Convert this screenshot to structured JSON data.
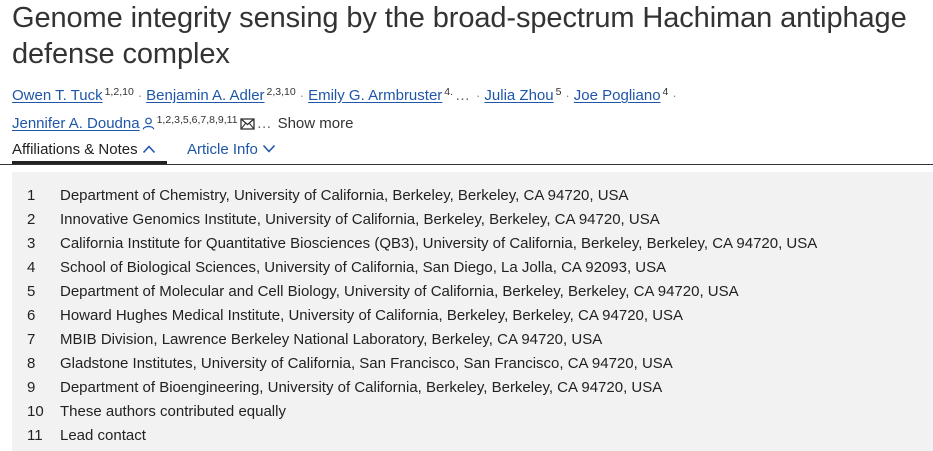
{
  "title": "Genome integrity sensing by the broad-spectrum Hachiman antiphage defense complex",
  "authors": [
    {
      "name": "Owen T. Tuck",
      "sup": "1,2,10"
    },
    {
      "name": "Benjamin A. Adler",
      "sup": "2,3,10"
    },
    {
      "name": "Emily G. Armbruster",
      "sup": "4."
    },
    {
      "name": "Julia Zhou",
      "sup": "5"
    },
    {
      "name": "Joe Pogliano",
      "sup": "4"
    },
    {
      "name": "Jennifer A. Doudna",
      "sup": "1,2,3,5,6,7,8,9,11"
    }
  ],
  "ellipsis": "…",
  "after_mail_ellipsis": "…",
  "show_more": "Show more",
  "tabs": {
    "affiliations": "Affiliations & Notes",
    "article_info": "Article Info"
  },
  "affiliations": [
    {
      "num": "1",
      "text": "Department of Chemistry, University of California, Berkeley, Berkeley, CA 94720, USA"
    },
    {
      "num": "2",
      "text": "Innovative Genomics Institute, University of California, Berkeley, Berkeley, CA 94720, USA"
    },
    {
      "num": "3",
      "text": "California Institute for Quantitative Biosciences (QB3), University of California, Berkeley, Berkeley, CA 94720, USA"
    },
    {
      "num": "4",
      "text": "School of Biological Sciences, University of California, San Diego, La Jolla, CA 92093, USA"
    },
    {
      "num": "5",
      "text": "Department of Molecular and Cell Biology, University of California, Berkeley, Berkeley, CA 94720, USA"
    },
    {
      "num": "6",
      "text": "Howard Hughes Medical Institute, University of California, Berkeley, Berkeley, CA 94720, USA"
    },
    {
      "num": "7",
      "text": "MBIB Division, Lawrence Berkeley National Laboratory, Berkeley, CA 94720, USA"
    },
    {
      "num": "8",
      "text": "Gladstone Institutes, University of California, San Francisco, San Francisco, CA 94720, USA"
    },
    {
      "num": "9",
      "text": "Department of Bioengineering, University of California, Berkeley, Berkeley, CA 94720, USA"
    },
    {
      "num": "10",
      "text": "These authors contributed equally"
    },
    {
      "num": "11",
      "text": "Lead contact"
    }
  ],
  "colors": {
    "link": "#1f56a8",
    "panel_bg": "#f2f2f2"
  },
  "icons": {
    "person": "person-icon",
    "mail": "mail-icon",
    "chevron_up": "chevron-up-icon",
    "chevron_down": "chevron-down-icon"
  }
}
